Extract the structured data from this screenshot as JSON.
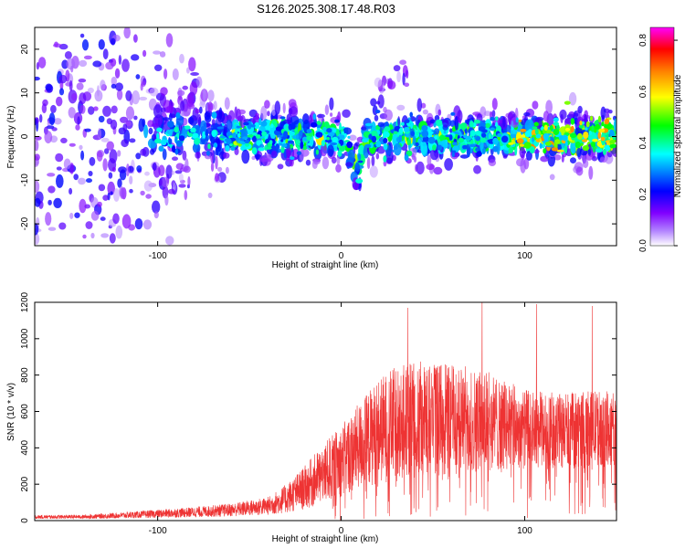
{
  "title": "S126.2025.308.17.48.R03",
  "colorbar": {
    "label": "Normalized spectral amplitude",
    "range": [
      0.0,
      0.85
    ],
    "ticks": [
      "0.0",
      "0.2",
      "0.4",
      "0.6",
      "0.8"
    ],
    "stops": [
      "#ffffff",
      "#8000ff",
      "#0000ff",
      "#00ffff",
      "#00ff00",
      "#ffff00",
      "#ff8000",
      "#ff0000",
      "#ff00ff"
    ]
  },
  "chart_data": [
    {
      "type": "heatmap",
      "name": "spectrogram",
      "xlabel": "Height of straight line (km)",
      "ylabel": "Frequency (Hz)",
      "xlim": [
        -167,
        150
      ],
      "ylim": [
        -25,
        25
      ],
      "xticks": [
        -100,
        0,
        100
      ],
      "yticks": [
        -20,
        -10,
        0,
        10,
        20
      ],
      "xtick_labels": [
        "-100",
        "0",
        "100"
      ],
      "ytick_labels": [
        "-20",
        "-10",
        "0",
        "10",
        "20"
      ],
      "description_points": {
        "center_frequency_hz": 0,
        "dip_near_km": 8,
        "dip_frequency_hz": -7,
        "bump_near_km": 28,
        "bump_frequency_hz": 12,
        "strong_band_from_km": 90
      }
    },
    {
      "type": "line",
      "name": "snr",
      "xlabel": "Height of straight line (km)",
      "ylabel": "SNR (10 * v/v)",
      "xlim": [
        -167,
        150
      ],
      "ylim": [
        0,
        1200
      ],
      "xticks": [
        -100,
        0,
        100
      ],
      "yticks": [
        0,
        200,
        400,
        600,
        800,
        1000,
        1200
      ],
      "xtick_labels": [
        "-100",
        "0",
        "100"
      ],
      "ytick_labels": [
        "0",
        "200",
        "400",
        "600",
        "800",
        "1000",
        "1200"
      ],
      "color": "#ee3333",
      "envelope_x": [
        -167,
        -140,
        -120,
        -100,
        -80,
        -60,
        -40,
        -30,
        -20,
        -10,
        0,
        10,
        20,
        30,
        40,
        60,
        80,
        100,
        120,
        140,
        150
      ],
      "envelope_low": [
        10,
        10,
        12,
        15,
        18,
        22,
        30,
        40,
        60,
        90,
        130,
        170,
        200,
        220,
        230,
        250,
        270,
        280,
        290,
        300,
        300
      ],
      "envelope_high": [
        30,
        32,
        45,
        60,
        75,
        95,
        130,
        200,
        300,
        420,
        520,
        650,
        780,
        850,
        880,
        880,
        820,
        720,
        700,
        720,
        700
      ],
      "peak_values": [
        1180,
        1190,
        1170,
        1150,
        1200
      ]
    }
  ]
}
